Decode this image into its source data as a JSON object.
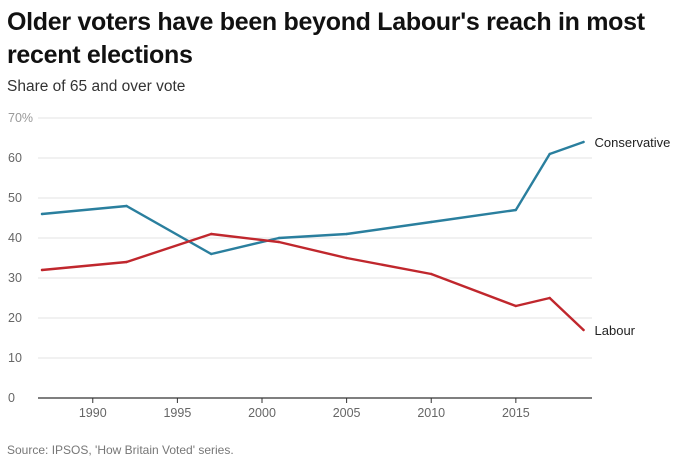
{
  "title": "Older voters have been beyond Labour's reach in most recent elections",
  "subtitle": "Share of 65 and over vote",
  "source": "Source: IPSOS, 'How Britain Voted' series.",
  "chart_data": {
    "type": "line",
    "title": "Older voters have been beyond Labour's reach in most recent elections",
    "subtitle": "Share of 65 and over vote",
    "xlabel": "",
    "ylabel": "",
    "xlim": [
      1987,
      2019.5
    ],
    "ylim": [
      0,
      70
    ],
    "x_ticks": [
      1990,
      1995,
      2000,
      2005,
      2010,
      2015
    ],
    "y_ticks": [
      0,
      10,
      20,
      30,
      40,
      50,
      60,
      70
    ],
    "y_tick_labels": [
      "0",
      "10",
      "20",
      "30",
      "40",
      "50",
      "60",
      "70%"
    ],
    "grid": true,
    "legend": "direct labels at line ends",
    "series": [
      {
        "name": "Conservative",
        "color": "#2a7f9e",
        "x": [
          1987,
          1992,
          1997,
          2001,
          2005,
          2010,
          2015,
          2017,
          2019
        ],
        "values": [
          46,
          48,
          36,
          40,
          41,
          44,
          47,
          61,
          64
        ]
      },
      {
        "name": "Labour",
        "color": "#c0272d",
        "x": [
          1987,
          1992,
          1997,
          2001,
          2005,
          2010,
          2015,
          2017,
          2019
        ],
        "values": [
          32,
          34,
          41,
          39,
          35,
          31,
          23,
          25,
          17
        ]
      }
    ]
  }
}
